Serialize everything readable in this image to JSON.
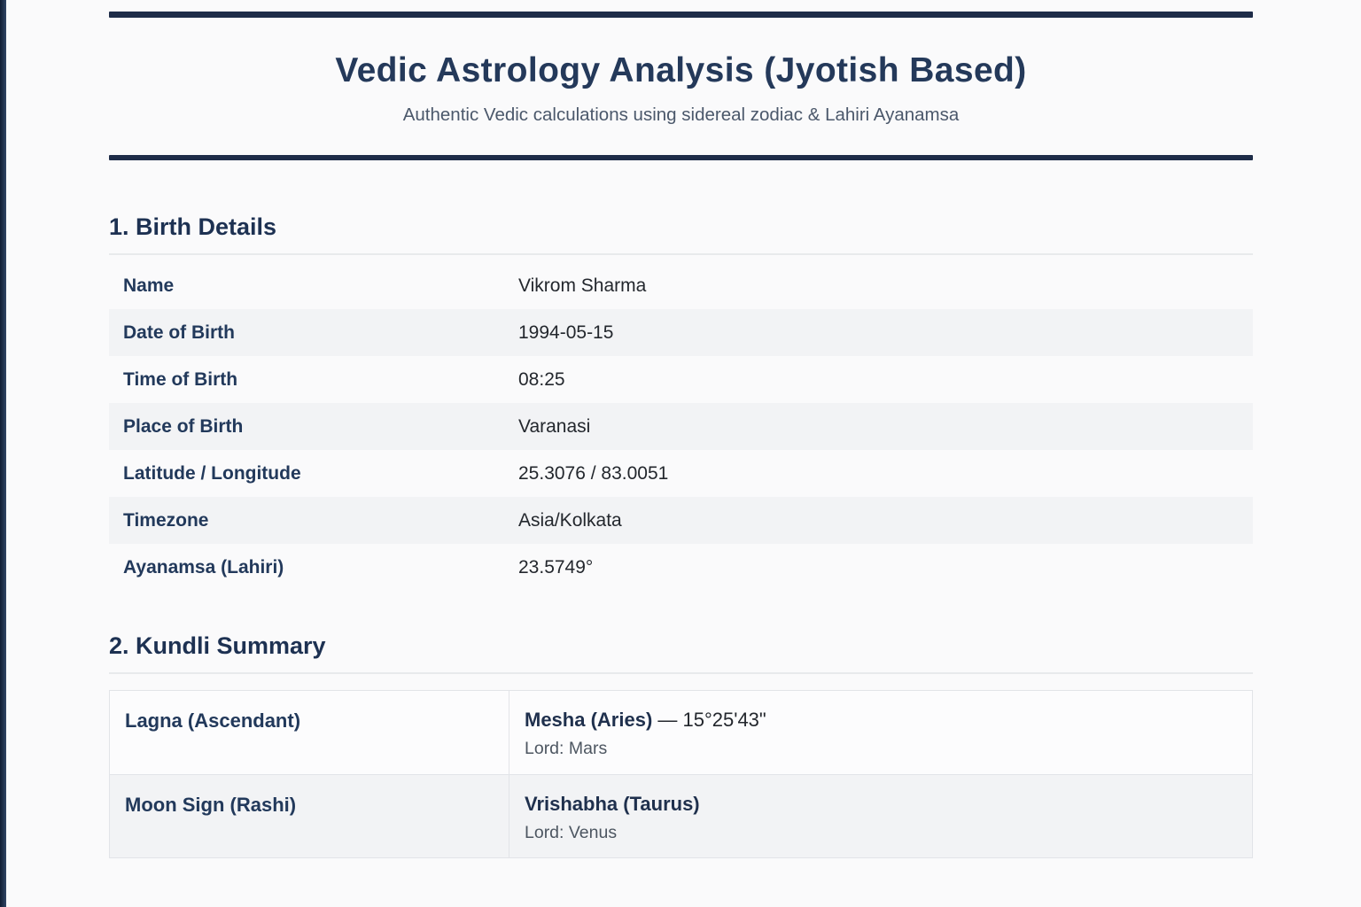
{
  "header": {
    "title": "Vedic Astrology Analysis (Jyotish Based)",
    "subtitle": "Authentic Vedic calculations using sidereal zodiac & Lahiri Ayanamsa"
  },
  "birth_details": {
    "heading": "1. Birth Details",
    "rows": [
      {
        "label": "Name",
        "value": "Vikrom Sharma"
      },
      {
        "label": "Date of Birth",
        "value": "1994-05-15"
      },
      {
        "label": "Time of Birth",
        "value": "08:25"
      },
      {
        "label": "Place of Birth",
        "value": "Varanasi"
      },
      {
        "label": "Latitude / Longitude",
        "value": "25.3076 / 83.0051"
      },
      {
        "label": "Timezone",
        "value": "Asia/Kolkata"
      },
      {
        "label": "Ayanamsa (Lahiri)",
        "value": "23.5749°"
      }
    ]
  },
  "kundli_summary": {
    "heading": "2. Kundli Summary",
    "rows": [
      {
        "label": "Lagna (Ascendant)",
        "value_main": "Mesha (Aries)",
        "value_extra": " — 15°25'43\"",
        "value_sub": "Lord: Mars"
      },
      {
        "label": "Moon Sign (Rashi)",
        "value_main": "Vrishabha (Taurus)",
        "value_extra": "",
        "value_sub": "Lord: Venus"
      }
    ]
  },
  "colors": {
    "accent_navy": "#1e2c48",
    "heading_text": "#1d3152",
    "row_alt_bg": "#f2f3f5",
    "table_border": "#e2e4e8",
    "page_bg": "#fafafb"
  }
}
